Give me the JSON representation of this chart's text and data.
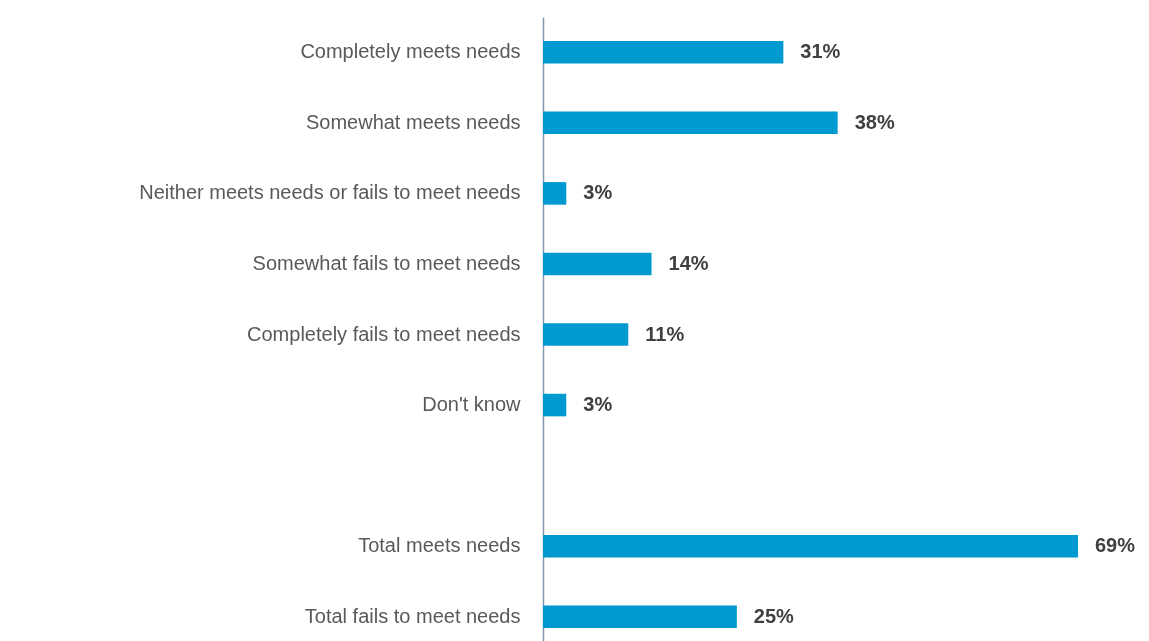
{
  "chart_data": {
    "type": "bar",
    "orientation": "horizontal",
    "categories": [
      "Completely meets needs",
      "Somewhat meets needs",
      "Neither meets needs or fails to meet needs",
      "Somewhat fails to meet needs",
      "Completely fails to meet needs",
      "Don't know",
      null,
      "Total meets needs",
      "Total fails to meet needs"
    ],
    "values": [
      31,
      38,
      3,
      14,
      11,
      3,
      null,
      69,
      25
    ],
    "value_labels": [
      "31%",
      "38%",
      "3%",
      "14%",
      "11%",
      "3%",
      null,
      "69%",
      "25%"
    ],
    "color": "#0099d0",
    "grid": false,
    "tick_labels": "y"
  }
}
